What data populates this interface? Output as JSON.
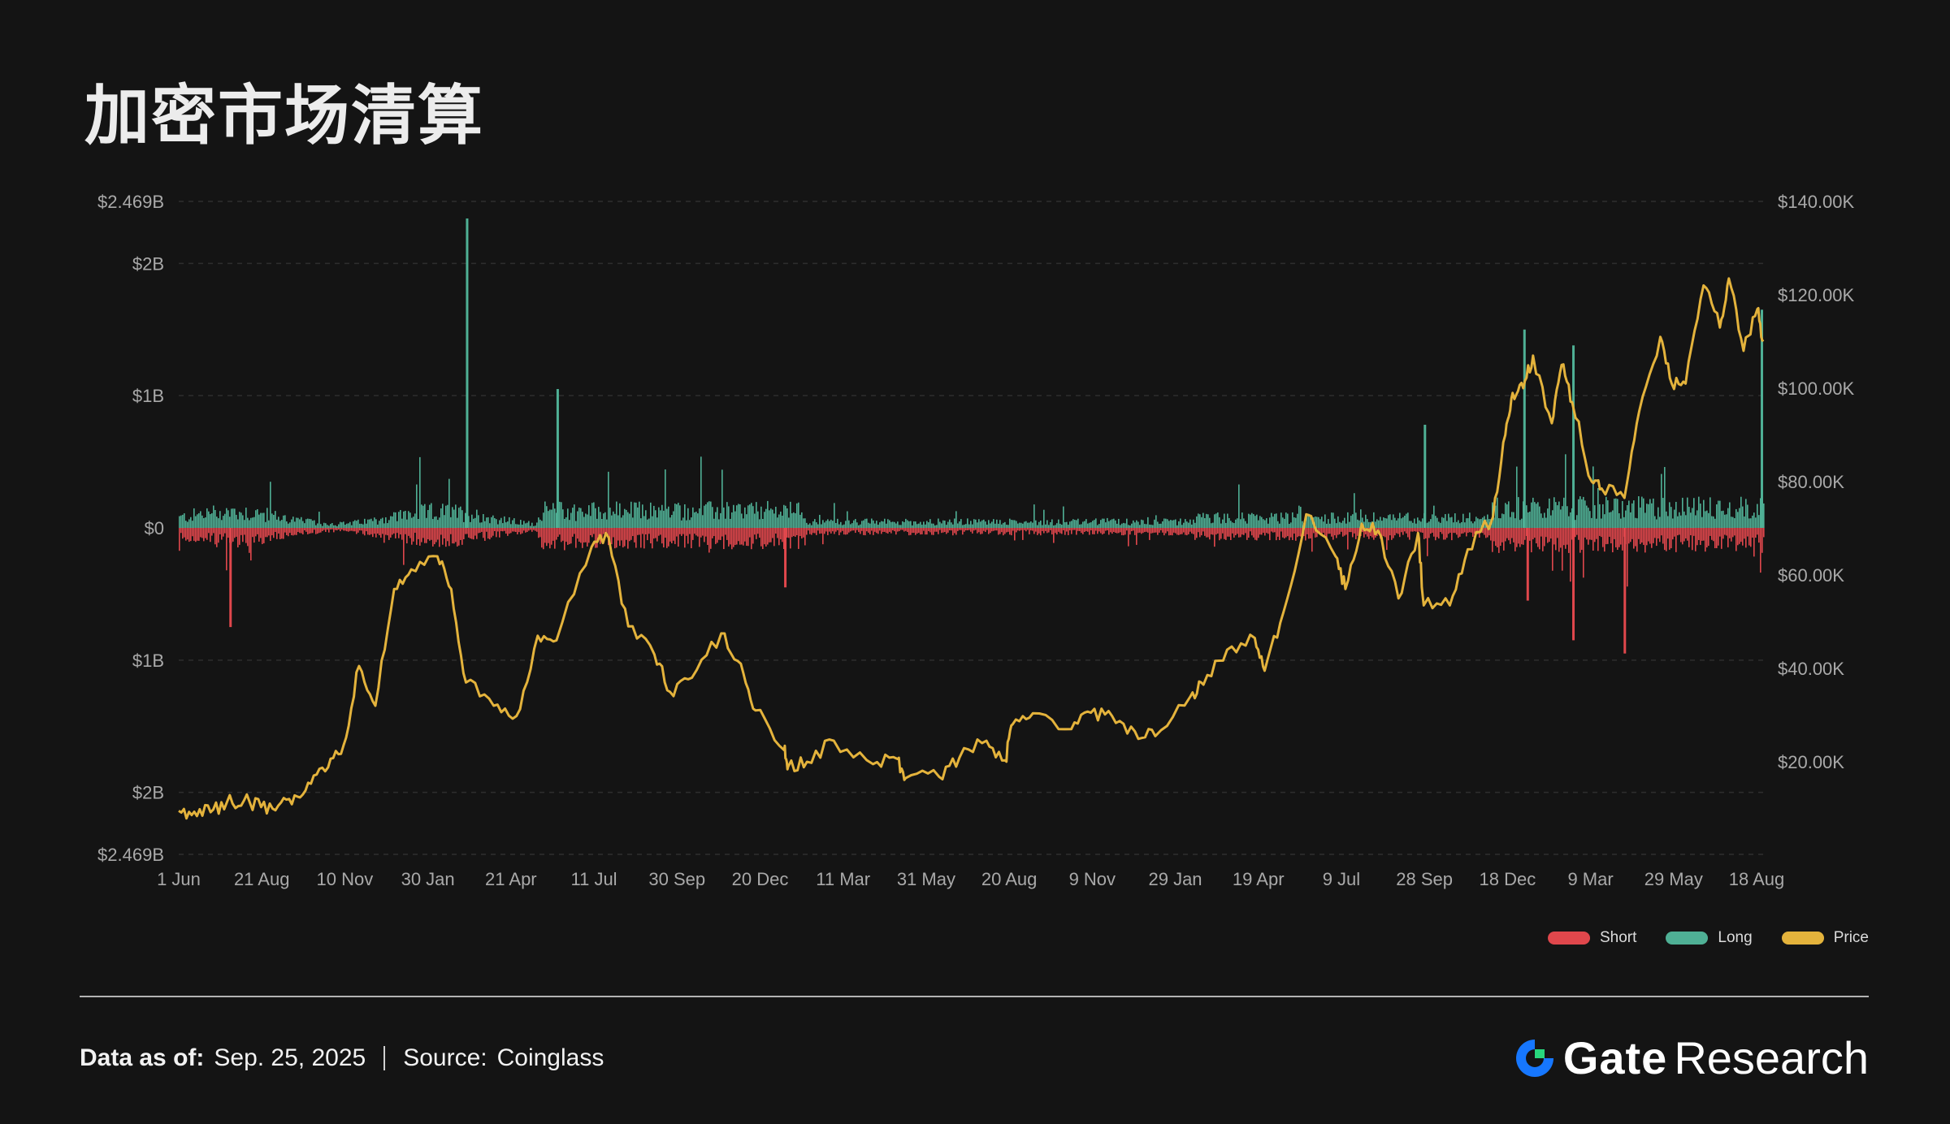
{
  "title": "加密市场清算",
  "chart_data": {
    "type": "bar",
    "x_ticks": [
      "1 Jun",
      "21 Aug",
      "10 Nov",
      "30 Jan",
      "21 Apr",
      "11 Jul",
      "30 Sep",
      "20 Dec",
      "11 Mar",
      "31 May",
      "20 Aug",
      "9 Nov",
      "29 Jan",
      "19 Apr",
      "9 Jul",
      "28 Sep",
      "18 Dec",
      "9 Mar",
      "29 May",
      "18 Aug"
    ],
    "left_axis": {
      "ticks": [
        {
          "v": 2.469,
          "label": "$2.469B"
        },
        {
          "v": 2,
          "label": "$2B"
        },
        {
          "v": 1,
          "label": "$1B"
        },
        {
          "v": 0,
          "label": "$0"
        },
        {
          "v": -1,
          "label": "$1B"
        },
        {
          "v": -2,
          "label": "$2B"
        },
        {
          "v": -2.469,
          "label": "$2.469B"
        }
      ],
      "range": [
        -2.469,
        2.469
      ],
      "unit": "USD billions"
    },
    "right_axis": {
      "ticks": [
        {
          "v": 140000,
          "label": "$140.00K"
        },
        {
          "v": 120000,
          "label": "$120.00K"
        },
        {
          "v": 100000,
          "label": "$100.00K"
        },
        {
          "v": 80000,
          "label": "$80.00K"
        },
        {
          "v": 60000,
          "label": "$60.00K"
        },
        {
          "v": 40000,
          "label": "$40.00K"
        },
        {
          "v": 20000,
          "label": "$20.00K"
        }
      ],
      "range": [
        0,
        140000
      ],
      "unit": "USD"
    },
    "series": [
      {
        "name": "Short",
        "color": "#e0474c",
        "approx_shape": "daily short liquidations plotted downward",
        "notable_spikes": [
          {
            "x": "2020-08-02",
            "value": -0.75
          },
          {
            "x": "2022-06-13",
            "value": -0.45
          },
          {
            "x": "2024-12-09",
            "value": -0.55
          },
          {
            "x": "2025-02-03",
            "value": -0.85
          },
          {
            "x": "2025-04-07",
            "value": -0.95
          }
        ]
      },
      {
        "name": "Long",
        "color": "#4fb095",
        "approx_shape": "daily long liquidations plotted upward",
        "notable_spikes": [
          {
            "x": "2021-05-19",
            "value": 2.34
          },
          {
            "x": "2021-09-07",
            "value": 1.05
          },
          {
            "x": "2024-08-05",
            "value": 0.78
          },
          {
            "x": "2024-12-05",
            "value": 1.5
          },
          {
            "x": "2025-02-03",
            "value": 1.38
          },
          {
            "x": "2025-09-22",
            "value": 1.65
          }
        ]
      },
      {
        "name": "Price",
        "color": "#e4b33c",
        "axis": "right",
        "points": [
          [
            "2020-06-01",
            9500
          ],
          [
            "2020-06-20",
            9300
          ],
          [
            "2020-07-10",
            9200
          ],
          [
            "2020-07-30",
            11300
          ],
          [
            "2020-08-20",
            11700
          ],
          [
            "2020-09-10",
            10300
          ],
          [
            "2020-10-01",
            10600
          ],
          [
            "2020-10-21",
            12800
          ],
          [
            "2020-11-10",
            15300
          ],
          [
            "2020-12-01",
            18800
          ],
          [
            "2020-12-20",
            23500
          ],
          [
            "2021-01-08",
            40500
          ],
          [
            "2021-01-28",
            32000
          ],
          [
            "2021-02-20",
            57000
          ],
          [
            "2021-03-13",
            61200
          ],
          [
            "2021-04-14",
            64000
          ],
          [
            "2021-05-01",
            57000
          ],
          [
            "2021-05-19",
            37000
          ],
          [
            "2021-06-22",
            32000
          ],
          [
            "2021-07-20",
            29800
          ],
          [
            "2021-08-15",
            47000
          ],
          [
            "2021-09-07",
            46000
          ],
          [
            "2021-10-20",
            66000
          ],
          [
            "2021-11-10",
            68000
          ],
          [
            "2021-12-04",
            49000
          ],
          [
            "2022-01-05",
            43000
          ],
          [
            "2022-01-24",
            35000
          ],
          [
            "2022-02-20",
            38000
          ],
          [
            "2022-03-28",
            47500
          ],
          [
            "2022-04-21",
            41000
          ],
          [
            "2022-05-09",
            31000
          ],
          [
            "2022-06-13",
            22500
          ],
          [
            "2022-06-18",
            19000
          ],
          [
            "2022-07-11",
            20000
          ],
          [
            "2022-08-13",
            24500
          ],
          [
            "2022-09-30",
            19500
          ],
          [
            "2022-10-30",
            20600
          ],
          [
            "2022-11-09",
            16500
          ],
          [
            "2022-12-20",
            16800
          ],
          [
            "2023-01-14",
            20900
          ],
          [
            "2023-02-16",
            24500
          ],
          [
            "2023-03-11",
            20300
          ],
          [
            "2023-03-20",
            28000
          ],
          [
            "2023-04-14",
            30400
          ],
          [
            "2023-05-31",
            27000
          ],
          [
            "2023-06-24",
            30500
          ],
          [
            "2023-07-20",
            29800
          ],
          [
            "2023-08-17",
            26500
          ],
          [
            "2023-09-11",
            25500
          ],
          [
            "2023-10-24",
            34000
          ],
          [
            "2023-11-09",
            36500
          ],
          [
            "2023-12-08",
            44000
          ],
          [
            "2024-01-11",
            46500
          ],
          [
            "2024-01-23",
            39500
          ],
          [
            "2024-02-15",
            52000
          ],
          [
            "2024-03-14",
            73000
          ],
          [
            "2024-04-19",
            64000
          ],
          [
            "2024-05-01",
            57000
          ],
          [
            "2024-05-21",
            71000
          ],
          [
            "2024-06-10",
            69500
          ],
          [
            "2024-07-05",
            55000
          ],
          [
            "2024-07-29",
            69000
          ],
          [
            "2024-08-05",
            53500
          ],
          [
            "2024-09-06",
            53500
          ],
          [
            "2024-09-28",
            65500
          ],
          [
            "2024-10-29",
            72500
          ],
          [
            "2024-11-13",
            90000
          ],
          [
            "2024-11-22",
            99000
          ],
          [
            "2024-12-05",
            100000
          ],
          [
            "2024-12-17",
            107000
          ],
          [
            "2025-01-09",
            92500
          ],
          [
            "2025-01-21",
            105000
          ],
          [
            "2025-02-03",
            97000
          ],
          [
            "2025-02-27",
            80000
          ],
          [
            "2025-03-11",
            78500
          ],
          [
            "2025-04-08",
            76500
          ],
          [
            "2025-04-26",
            95000
          ],
          [
            "2025-05-22",
            111000
          ],
          [
            "2025-06-05",
            101000
          ],
          [
            "2025-06-22",
            101000
          ],
          [
            "2025-07-14",
            122000
          ],
          [
            "2025-08-03",
            113000
          ],
          [
            "2025-08-14",
            123500
          ],
          [
            "2025-09-01",
            108000
          ],
          [
            "2025-09-18",
            117000
          ],
          [
            "2025-09-25",
            110000
          ]
        ]
      }
    ]
  },
  "legend": [
    {
      "label": "Short",
      "color": "#e0474c"
    },
    {
      "label": "Long",
      "color": "#4fb095"
    },
    {
      "label": "Price",
      "color": "#e4b33c"
    }
  ],
  "footer": {
    "data_label": "Data as of:",
    "data_value": "Sep. 25, 2025",
    "source_label": "Source:",
    "source_value": "Coinglass"
  },
  "brand": {
    "name": "Gate",
    "suffix": "Research",
    "accent": "#1677ff"
  }
}
